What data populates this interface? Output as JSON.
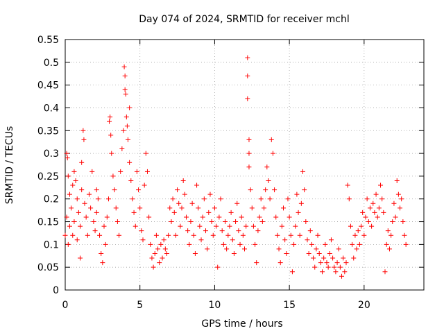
{
  "chart_data": {
    "type": "scatter",
    "title": "Day 074 of 2024, SRMTID for receiver mchl",
    "xlabel": "GPS time / hours",
    "ylabel": "SRMTID / TECUs",
    "xlim": [
      0,
      24
    ],
    "ylim": [
      0,
      0.55
    ],
    "xticks": [
      0,
      5,
      10,
      15,
      20
    ],
    "xtick_labels": [
      "0",
      "5",
      "10",
      "15",
      "20"
    ],
    "yticks": [
      0,
      0.05,
      0.1,
      0.15,
      0.2,
      0.25,
      0.3,
      0.35,
      0.4,
      0.45,
      0.5,
      0.55
    ],
    "ytick_labels": [
      "0",
      "0.05",
      "0.1",
      "0.15",
      "0.2",
      "0.25",
      "0.3",
      "0.35",
      "0.4",
      "0.45",
      "0.5",
      "0.55"
    ],
    "grid": true,
    "marker": "+",
    "color": "#ff0000",
    "series": [
      {
        "name": "SRMTID",
        "points": [
          [
            0.0,
            0.12
          ],
          [
            0.1,
            0.16
          ],
          [
            0.1,
            0.3
          ],
          [
            0.15,
            0.29
          ],
          [
            0.2,
            0.25
          ],
          [
            0.2,
            0.1
          ],
          [
            0.3,
            0.21
          ],
          [
            0.3,
            0.14
          ],
          [
            0.4,
            0.18
          ],
          [
            0.5,
            0.12
          ],
          [
            0.5,
            0.23
          ],
          [
            0.6,
            0.26
          ],
          [
            0.6,
            0.15
          ],
          [
            0.7,
            0.24
          ],
          [
            0.8,
            0.2
          ],
          [
            0.8,
            0.11
          ],
          [
            0.9,
            0.17
          ],
          [
            1.0,
            0.14
          ],
          [
            1.0,
            0.07
          ],
          [
            1.1,
            0.28
          ],
          [
            1.1,
            0.22
          ],
          [
            1.2,
            0.35
          ],
          [
            1.25,
            0.33
          ],
          [
            1.3,
            0.19
          ],
          [
            1.4,
            0.16
          ],
          [
            1.5,
            0.12
          ],
          [
            1.6,
            0.21
          ],
          [
            1.7,
            0.18
          ],
          [
            1.8,
            0.26
          ],
          [
            1.9,
            0.15
          ],
          [
            2.0,
            0.13
          ],
          [
            2.1,
            0.22
          ],
          [
            2.1,
            0.17
          ],
          [
            2.2,
            0.2
          ],
          [
            2.3,
            0.12
          ],
          [
            2.4,
            0.08
          ],
          [
            2.5,
            0.06
          ],
          [
            2.6,
            0.14
          ],
          [
            2.7,
            0.1
          ],
          [
            2.8,
            0.16
          ],
          [
            2.9,
            0.2
          ],
          [
            2.95,
            0.37
          ],
          [
            3.0,
            0.38
          ],
          [
            3.05,
            0.34
          ],
          [
            3.1,
            0.3
          ],
          [
            3.2,
            0.25
          ],
          [
            3.3,
            0.22
          ],
          [
            3.4,
            0.18
          ],
          [
            3.5,
            0.15
          ],
          [
            3.6,
            0.12
          ],
          [
            3.7,
            0.26
          ],
          [
            3.8,
            0.31
          ],
          [
            3.9,
            0.35
          ],
          [
            3.95,
            0.49
          ],
          [
            4.0,
            0.47
          ],
          [
            4.0,
            0.44
          ],
          [
            4.05,
            0.43
          ],
          [
            4.1,
            0.38
          ],
          [
            4.15,
            0.36
          ],
          [
            4.2,
            0.33
          ],
          [
            4.3,
            0.4
          ],
          [
            4.3,
            0.28
          ],
          [
            4.4,
            0.24
          ],
          [
            4.5,
            0.2
          ],
          [
            4.6,
            0.17
          ],
          [
            4.7,
            0.14
          ],
          [
            4.8,
            0.26
          ],
          [
            4.9,
            0.22
          ],
          [
            5.0,
            0.18
          ],
          [
            5.1,
            0.13
          ],
          [
            5.2,
            0.11
          ],
          [
            5.3,
            0.23
          ],
          [
            5.4,
            0.3
          ],
          [
            5.5,
            0.26
          ],
          [
            5.6,
            0.16
          ],
          [
            5.7,
            0.1
          ],
          [
            5.8,
            0.07
          ],
          [
            5.9,
            0.05
          ],
          [
            6.0,
            0.08
          ],
          [
            6.1,
            0.12
          ],
          [
            6.2,
            0.09
          ],
          [
            6.3,
            0.06
          ],
          [
            6.4,
            0.1
          ],
          [
            6.5,
            0.07
          ],
          [
            6.6,
            0.11
          ],
          [
            6.7,
            0.09
          ],
          [
            6.8,
            0.08
          ],
          [
            6.9,
            0.12
          ],
          [
            7.0,
            0.18
          ],
          [
            7.1,
            0.15
          ],
          [
            7.2,
            0.2
          ],
          [
            7.3,
            0.17
          ],
          [
            7.4,
            0.12
          ],
          [
            7.5,
            0.22
          ],
          [
            7.6,
            0.19
          ],
          [
            7.7,
            0.14
          ],
          [
            7.8,
            0.18
          ],
          [
            7.9,
            0.24
          ],
          [
            8.0,
            0.21
          ],
          [
            8.1,
            0.16
          ],
          [
            8.2,
            0.13
          ],
          [
            8.3,
            0.1
          ],
          [
            8.4,
            0.15
          ],
          [
            8.5,
            0.19
          ],
          [
            8.6,
            0.12
          ],
          [
            8.7,
            0.08
          ],
          [
            8.8,
            0.23
          ],
          [
            8.9,
            0.18
          ],
          [
            9.0,
            0.14
          ],
          [
            9.1,
            0.11
          ],
          [
            9.2,
            0.16
          ],
          [
            9.3,
            0.2
          ],
          [
            9.4,
            0.13
          ],
          [
            9.5,
            0.09
          ],
          [
            9.6,
            0.17
          ],
          [
            9.7,
            0.21
          ],
          [
            9.8,
            0.15
          ],
          [
            9.9,
            0.12
          ],
          [
            10.0,
            0.18
          ],
          [
            10.1,
            0.14
          ],
          [
            10.2,
            0.05
          ],
          [
            10.3,
            0.16
          ],
          [
            10.4,
            0.2
          ],
          [
            10.5,
            0.13
          ],
          [
            10.6,
            0.1
          ],
          [
            10.7,
            0.15
          ],
          [
            10.8,
            0.09
          ],
          [
            10.9,
            0.12
          ],
          [
            11.0,
            0.14
          ],
          [
            11.1,
            0.17
          ],
          [
            11.2,
            0.11
          ],
          [
            11.3,
            0.08
          ],
          [
            11.4,
            0.15
          ],
          [
            11.5,
            0.19
          ],
          [
            11.6,
            0.13
          ],
          [
            11.7,
            0.1
          ],
          [
            11.8,
            0.16
          ],
          [
            11.9,
            0.12
          ],
          [
            12.0,
            0.09
          ],
          [
            12.1,
            0.14
          ],
          [
            12.2,
            0.51
          ],
          [
            12.2,
            0.47
          ],
          [
            12.2,
            0.42
          ],
          [
            12.3,
            0.33
          ],
          [
            12.3,
            0.3
          ],
          [
            12.3,
            0.27
          ],
          [
            12.4,
            0.22
          ],
          [
            12.5,
            0.18
          ],
          [
            12.6,
            0.14
          ],
          [
            12.7,
            0.1
          ],
          [
            12.8,
            0.06
          ],
          [
            12.9,
            0.13
          ],
          [
            13.0,
            0.16
          ],
          [
            13.1,
            0.2
          ],
          [
            13.2,
            0.15
          ],
          [
            13.3,
            0.18
          ],
          [
            13.4,
            0.22
          ],
          [
            13.5,
            0.27
          ],
          [
            13.6,
            0.24
          ],
          [
            13.7,
            0.2
          ],
          [
            13.8,
            0.33
          ],
          [
            13.9,
            0.3
          ],
          [
            14.0,
            0.22
          ],
          [
            14.1,
            0.16
          ],
          [
            14.2,
            0.12
          ],
          [
            14.3,
            0.09
          ],
          [
            14.4,
            0.06
          ],
          [
            14.5,
            0.14
          ],
          [
            14.6,
            0.18
          ],
          [
            14.7,
            0.11
          ],
          [
            14.8,
            0.08
          ],
          [
            14.9,
            0.2
          ],
          [
            15.0,
            0.16
          ],
          [
            15.1,
            0.12
          ],
          [
            15.2,
            0.04
          ],
          [
            15.3,
            0.1
          ],
          [
            15.4,
            0.14
          ],
          [
            15.5,
            0.21
          ],
          [
            15.6,
            0.17
          ],
          [
            15.7,
            0.12
          ],
          [
            15.8,
            0.19
          ],
          [
            15.9,
            0.26
          ],
          [
            16.0,
            0.22
          ],
          [
            16.1,
            0.15
          ],
          [
            16.2,
            0.11
          ],
          [
            16.3,
            0.08
          ],
          [
            16.4,
            0.13
          ],
          [
            16.5,
            0.1
          ],
          [
            16.6,
            0.07
          ],
          [
            16.7,
            0.05
          ],
          [
            16.8,
            0.09
          ],
          [
            16.9,
            0.12
          ],
          [
            17.0,
            0.08
          ],
          [
            17.1,
            0.06
          ],
          [
            17.2,
            0.04
          ],
          [
            17.3,
            0.07
          ],
          [
            17.4,
            0.1
          ],
          [
            17.5,
            0.06
          ],
          [
            17.6,
            0.05
          ],
          [
            17.7,
            0.08
          ],
          [
            17.8,
            0.11
          ],
          [
            17.9,
            0.07
          ],
          [
            18.0,
            0.05
          ],
          [
            18.1,
            0.04
          ],
          [
            18.2,
            0.06
          ],
          [
            18.3,
            0.09
          ],
          [
            18.4,
            0.05
          ],
          [
            18.5,
            0.03
          ],
          [
            18.6,
            0.07
          ],
          [
            18.7,
            0.04
          ],
          [
            18.8,
            0.06
          ],
          [
            18.9,
            0.23
          ],
          [
            19.0,
            0.2
          ],
          [
            19.1,
            0.14
          ],
          [
            19.2,
            0.1
          ],
          [
            19.3,
            0.07
          ],
          [
            19.4,
            0.12
          ],
          [
            19.5,
            0.09
          ],
          [
            19.6,
            0.13
          ],
          [
            19.7,
            0.1
          ],
          [
            19.8,
            0.14
          ],
          [
            19.9,
            0.17
          ],
          [
            20.0,
            0.12
          ],
          [
            20.1,
            0.16
          ],
          [
            20.2,
            0.2
          ],
          [
            20.3,
            0.15
          ],
          [
            20.4,
            0.18
          ],
          [
            20.5,
            0.14
          ],
          [
            20.6,
            0.19
          ],
          [
            20.7,
            0.17
          ],
          [
            20.8,
            0.21
          ],
          [
            20.9,
            0.16
          ],
          [
            21.0,
            0.18
          ],
          [
            21.1,
            0.23
          ],
          [
            21.2,
            0.2
          ],
          [
            21.3,
            0.17
          ],
          [
            21.4,
            0.04
          ],
          [
            21.5,
            0.1
          ],
          [
            21.6,
            0.13
          ],
          [
            21.7,
            0.09
          ],
          [
            21.8,
            0.12
          ],
          [
            21.9,
            0.15
          ],
          [
            22.0,
            0.19
          ],
          [
            22.1,
            0.16
          ],
          [
            22.2,
            0.24
          ],
          [
            22.3,
            0.21
          ],
          [
            22.4,
            0.18
          ],
          [
            22.5,
            0.2
          ],
          [
            22.6,
            0.15
          ],
          [
            22.7,
            0.12
          ],
          [
            22.8,
            0.1
          ]
        ]
      }
    ]
  }
}
